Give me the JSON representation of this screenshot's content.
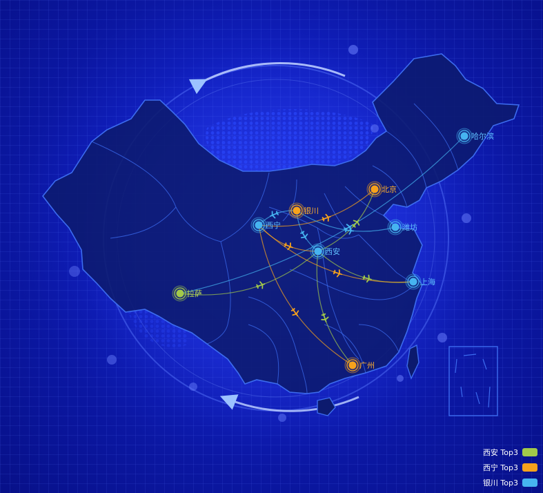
{
  "colors": {
    "xian": "#a2c94a",
    "xining": "#f7a21c",
    "yinchuan": "#46b4f0",
    "province_fill": "#0c1a6e",
    "province_stroke": "#3c6cf0",
    "label_blue": "#5fc0ff",
    "label_orange": "#ffb02e",
    "label_green": "#b9d956"
  },
  "cities": [
    {
      "key": "harbin",
      "name": "哈尔滨",
      "type": "blue"
    },
    {
      "key": "beijing",
      "name": "北京",
      "type": "orange"
    },
    {
      "key": "yinchuan",
      "name": "银川",
      "type": "orange"
    },
    {
      "key": "xining",
      "name": "西宁",
      "type": "blue"
    },
    {
      "key": "weifang",
      "name": "潍坊",
      "type": "blue"
    },
    {
      "key": "xian",
      "name": "西安",
      "type": "blue"
    },
    {
      "key": "shanghai",
      "name": "上海",
      "type": "blue"
    },
    {
      "key": "lhasa",
      "name": "拉萨",
      "type": "green"
    },
    {
      "key": "guangzhou",
      "name": "广州",
      "type": "orange"
    }
  ],
  "routes": [
    {
      "from": "xian",
      "to": "beijing",
      "series": "xian"
    },
    {
      "from": "xian",
      "to": "shanghai",
      "series": "xian"
    },
    {
      "from": "xian",
      "to": "guangzhou",
      "series": "xian"
    },
    {
      "from": "xining",
      "to": "beijing",
      "series": "xining"
    },
    {
      "from": "xining",
      "to": "shanghai",
      "series": "xining"
    },
    {
      "from": "xining",
      "to": "guangzhou",
      "series": "xining"
    },
    {
      "from": "yinchuan",
      "to": "xining",
      "series": "yinchuan"
    },
    {
      "from": "yinchuan",
      "to": "weifang",
      "series": "yinchuan"
    },
    {
      "from": "yinchuan",
      "to": "xian",
      "series": "yinchuan"
    },
    {
      "from": "lhasa",
      "to": "harbin",
      "series": "yinchuan"
    },
    {
      "from": "lhasa",
      "to": "xian",
      "series": "xian"
    },
    {
      "from": "xining",
      "to": "xian",
      "series": "xining"
    }
  ],
  "legend": [
    {
      "label": "西安 Top3",
      "series": "xian"
    },
    {
      "label": "西宁 Top3",
      "series": "xining"
    },
    {
      "label": "银川 Top3",
      "series": "yinchuan"
    }
  ],
  "icons": {
    "plane": "plane-icon",
    "city_marker": "map-pin-icon"
  }
}
